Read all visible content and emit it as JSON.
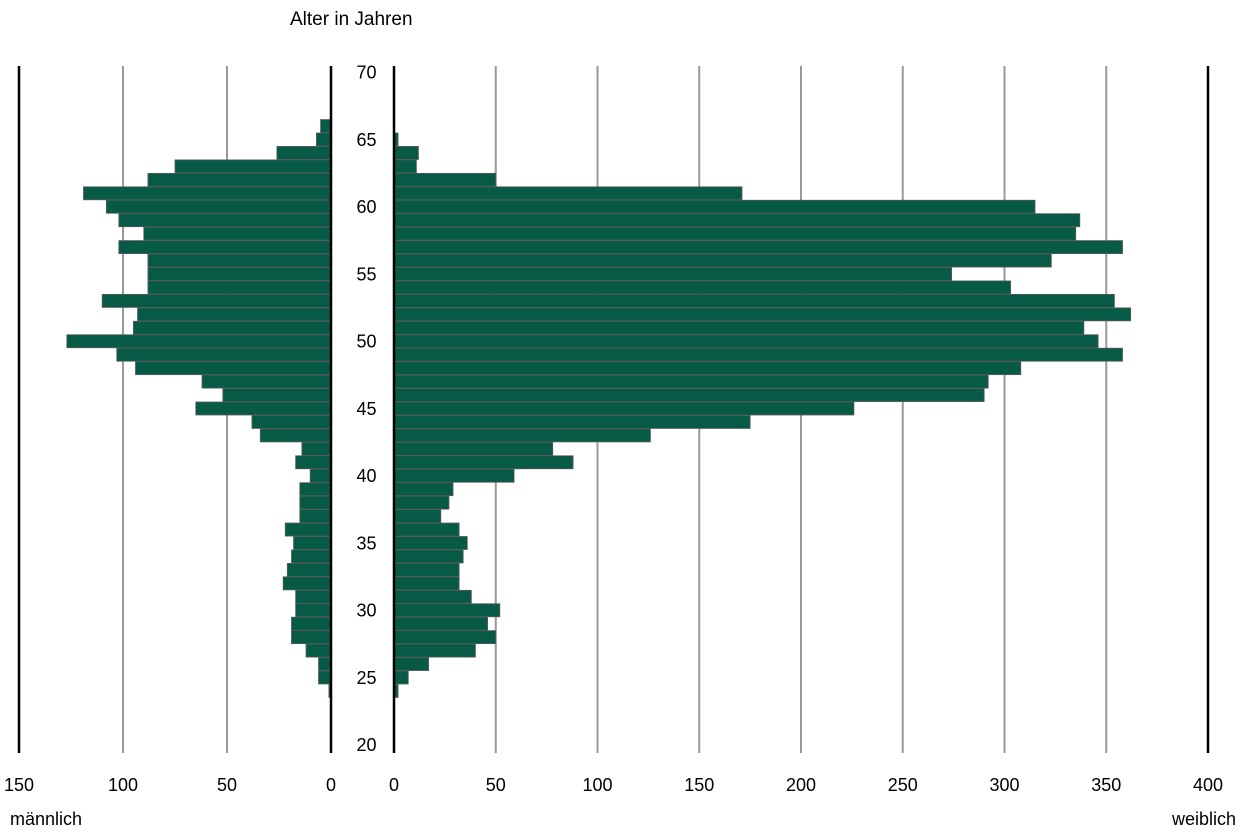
{
  "chart_data": {
    "type": "bar",
    "subtype": "population-pyramid",
    "title": "Alter in Jahren",
    "left_label": "männlich",
    "right_label": "weiblich",
    "y_axis": {
      "min": 20,
      "max": 70,
      "ticks": [
        20,
        25,
        30,
        35,
        40,
        45,
        50,
        55,
        60,
        65,
        70
      ]
    },
    "left_axis": {
      "min": 0,
      "max": 150,
      "ticks": [
        0,
        50,
        100,
        150
      ]
    },
    "right_axis": {
      "min": 0,
      "max": 400,
      "ticks": [
        0,
        50,
        100,
        150,
        200,
        250,
        300,
        350,
        400
      ]
    },
    "bar_color": "#075a45",
    "grid_color": "#999999",
    "ages": [
      23,
      24,
      25,
      26,
      27,
      28,
      29,
      30,
      31,
      32,
      33,
      34,
      35,
      36,
      37,
      38,
      39,
      40,
      41,
      42,
      43,
      44,
      45,
      46,
      47,
      48,
      49,
      50,
      51,
      52,
      53,
      54,
      55,
      56,
      57,
      58,
      59,
      60,
      61,
      62,
      63,
      64,
      65,
      66
    ],
    "series": [
      {
        "name": "männlich",
        "values": [
          0,
          1,
          6,
          6,
          12,
          19,
          19,
          17,
          17,
          23,
          21,
          19,
          18,
          22,
          15,
          15,
          15,
          10,
          17,
          14,
          34,
          38,
          65,
          52,
          62,
          94,
          103,
          127,
          95,
          93,
          110,
          88,
          88,
          88,
          102,
          90,
          102,
          108,
          119,
          88,
          75,
          26,
          7,
          5
        ]
      },
      {
        "name": "weiblich",
        "values": [
          0,
          2,
          7,
          17,
          40,
          50,
          46,
          52,
          38,
          32,
          32,
          34,
          36,
          32,
          23,
          27,
          29,
          59,
          88,
          78,
          126,
          175,
          226,
          290,
          292,
          308,
          358,
          346,
          339,
          362,
          354,
          303,
          274,
          323,
          358,
          335,
          337,
          315,
          171,
          50,
          11,
          12,
          2,
          0
        ]
      }
    ]
  }
}
